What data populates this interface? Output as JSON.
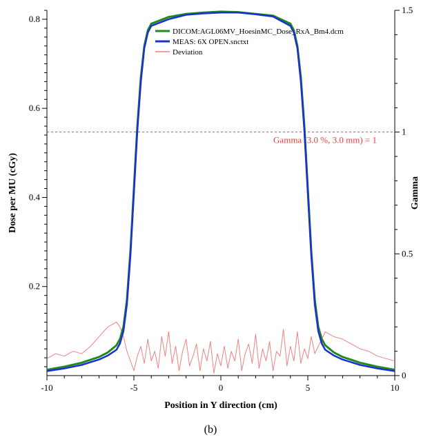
{
  "chart_data": {
    "type": "line",
    "xlabel": "Position in Y direction (cm)",
    "ylabel": "Dose per MU (cGy)",
    "y2label": "Gamma",
    "xlim": [
      -10,
      10
    ],
    "ylim": [
      0.0,
      0.82
    ],
    "y2lim": [
      0,
      1.5
    ],
    "x_ticks": [
      -10,
      -5,
      0,
      5,
      10
    ],
    "y_ticks": [
      0.2,
      0.4,
      0.6,
      0.8
    ],
    "y2_ticks": [
      0,
      0.5,
      1,
      1.5
    ],
    "x_tick_labels": [
      "-10",
      "-5",
      "0",
      "5",
      "10"
    ],
    "y_tick_labels": [
      "0.2",
      "0.4",
      "0.6",
      "0.8"
    ],
    "y2_tick_labels": [
      "0",
      "0.5",
      "1",
      "1.5"
    ],
    "grid": false,
    "legend_position": "top-right",
    "threshold": {
      "value": 1,
      "axis": "y2",
      "label": "Gamma (3.0 %, 3.0 mm) = 1",
      "color": "#e8413c"
    },
    "caption": "(b)",
    "series": [
      {
        "name": "DICOM:AGL06MV_HoesinMC_Dose_RxA_Bm4.dcm",
        "color": "#1f8a1f",
        "axis": "y",
        "x": [
          -10,
          -9,
          -8,
          -7,
          -6.5,
          -6,
          -5.8,
          -5.6,
          -5.4,
          -5.2,
          -5,
          -4.8,
          -4.6,
          -4.4,
          -4.2,
          -4,
          -3,
          -2,
          -1,
          0,
          1,
          2,
          3,
          4,
          4.2,
          4.4,
          4.6,
          4.8,
          5,
          5.2,
          5.4,
          5.6,
          5.8,
          6,
          6.5,
          7,
          8,
          9,
          10
        ],
        "y": [
          0.013,
          0.02,
          0.029,
          0.042,
          0.052,
          0.068,
          0.082,
          0.11,
          0.17,
          0.28,
          0.42,
          0.56,
          0.67,
          0.74,
          0.775,
          0.79,
          0.805,
          0.812,
          0.815,
          0.817,
          0.816,
          0.812,
          0.808,
          0.79,
          0.775,
          0.74,
          0.67,
          0.56,
          0.42,
          0.28,
          0.17,
          0.11,
          0.082,
          0.068,
          0.052,
          0.042,
          0.029,
          0.02,
          0.013
        ]
      },
      {
        "name": "MEAS: 6X OPEN.snctxt",
        "color": "#1c2fd0",
        "axis": "y",
        "x": [
          -10,
          -9,
          -8,
          -7,
          -6.5,
          -6,
          -5.8,
          -5.6,
          -5.4,
          -5.2,
          -5,
          -4.8,
          -4.6,
          -4.4,
          -4.2,
          -4,
          -3,
          -2,
          -1,
          0,
          1,
          2,
          3,
          4,
          4.2,
          4.4,
          4.6,
          4.8,
          5,
          5.2,
          5.4,
          5.6,
          5.8,
          6,
          6.5,
          7,
          8,
          9,
          10
        ],
        "y": [
          0.01,
          0.016,
          0.024,
          0.036,
          0.045,
          0.058,
          0.072,
          0.1,
          0.16,
          0.27,
          0.41,
          0.55,
          0.66,
          0.735,
          0.77,
          0.785,
          0.8,
          0.81,
          0.813,
          0.815,
          0.815,
          0.811,
          0.806,
          0.785,
          0.77,
          0.735,
          0.66,
          0.55,
          0.41,
          0.27,
          0.16,
          0.1,
          0.072,
          0.058,
          0.045,
          0.036,
          0.024,
          0.016,
          0.01
        ]
      },
      {
        "name": "Deviation",
        "color": "#f08080",
        "axis": "y2",
        "x": [
          -10,
          -9.5,
          -9,
          -8.5,
          -8,
          -7.5,
          -7,
          -6.5,
          -6,
          -5.8,
          -5.6,
          -5.4,
          -5.2,
          -5,
          -4.8,
          -4.6,
          -4.4,
          -4.2,
          -4,
          -3.8,
          -3.6,
          -3.4,
          -3.2,
          -3,
          -2.8,
          -2.6,
          -2.4,
          -2.2,
          -2,
          -1.8,
          -1.6,
          -1.4,
          -1.2,
          -1,
          -0.8,
          -0.6,
          -0.4,
          -0.2,
          0,
          0.2,
          0.4,
          0.6,
          0.8,
          1,
          1.2,
          1.4,
          1.6,
          1.8,
          2,
          2.2,
          2.4,
          2.6,
          2.8,
          3,
          3.2,
          3.4,
          3.6,
          3.8,
          4,
          4.2,
          4.4,
          4.6,
          4.8,
          5,
          5.2,
          5.4,
          5.6,
          5.8,
          6,
          6.5,
          7,
          7.5,
          8,
          8.5,
          9,
          9.5,
          10
        ],
        "y": [
          0.07,
          0.09,
          0.08,
          0.1,
          0.09,
          0.12,
          0.16,
          0.2,
          0.22,
          0.2,
          0.16,
          0.1,
          0.06,
          0.02,
          0.08,
          0.12,
          0.05,
          0.15,
          0.06,
          0.1,
          0.03,
          0.16,
          0.08,
          0.18,
          0.05,
          0.12,
          0.02,
          0.1,
          0.15,
          0.04,
          0.08,
          0.13,
          0.02,
          0.11,
          0.06,
          0.14,
          0.01,
          0.09,
          0.04,
          0.12,
          0.03,
          0.1,
          0.06,
          0.15,
          0.02,
          0.09,
          0.13,
          0.05,
          0.17,
          0.03,
          0.11,
          0.06,
          0.14,
          0.02,
          0.1,
          0.08,
          0.19,
          0.04,
          0.12,
          0.06,
          0.18,
          0.05,
          0.11,
          0.07,
          0.16,
          0.09,
          0.12,
          0.15,
          0.18,
          0.16,
          0.15,
          0.13,
          0.11,
          0.1,
          0.08,
          0.07,
          0.06
        ]
      }
    ]
  }
}
